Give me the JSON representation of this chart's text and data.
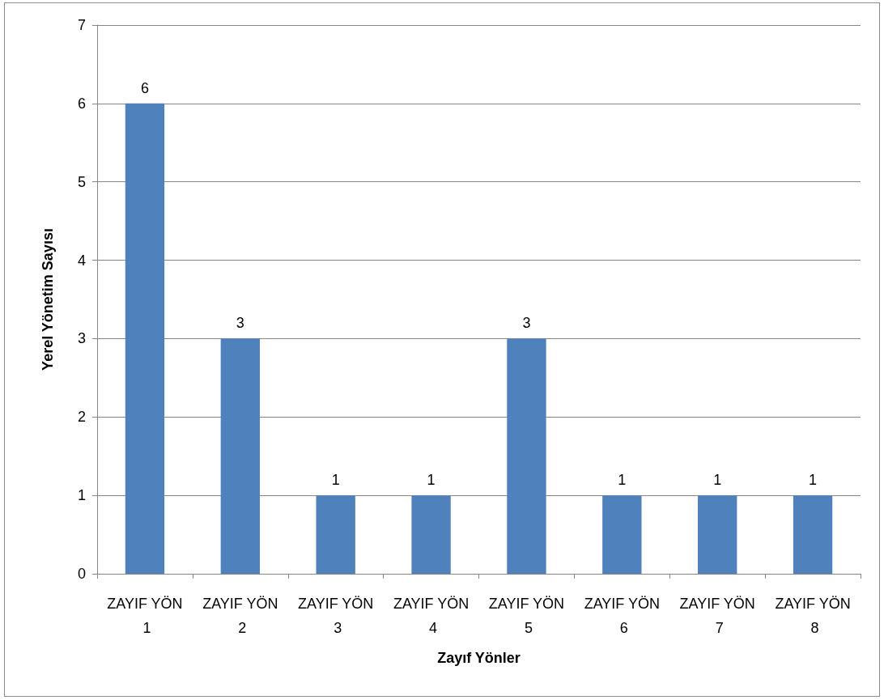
{
  "chart_data": {
    "type": "bar",
    "xlabel": "Zayıf Yönler",
    "ylabel": "Yerel Yönetim Sayısı",
    "categories": [
      "ZAYIF YÖN 1",
      "ZAYIF YÖN 2",
      "ZAYIF YÖN 3",
      "ZAYIF YÖN 4",
      "ZAYIF YÖN 5",
      "ZAYIF YÖN 6",
      "ZAYIF YÖN 7",
      "ZAYIF YÖN 8"
    ],
    "values": [
      6,
      3,
      1,
      1,
      3,
      1,
      1,
      1
    ],
    "color": "#4f81bd",
    "ylim": [
      0,
      7
    ],
    "yticks": [
      0,
      1,
      2,
      3,
      4,
      5,
      6,
      7
    ],
    "grid": "y",
    "data_labels": true
  }
}
